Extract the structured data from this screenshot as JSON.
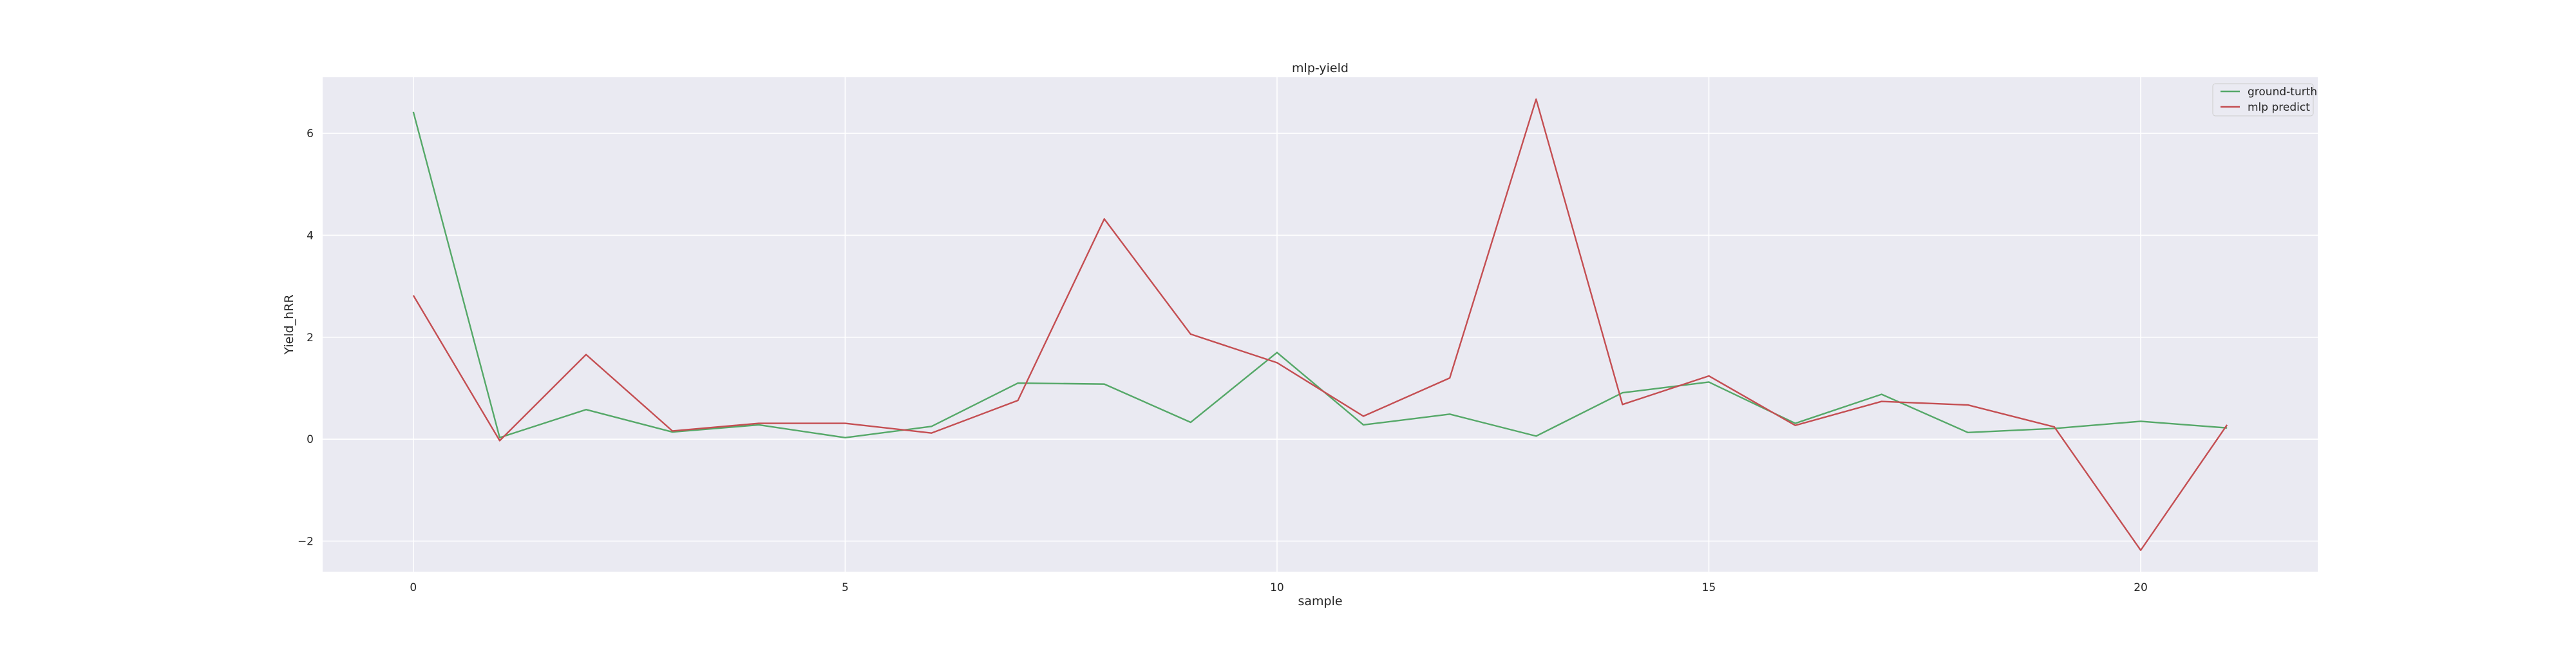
{
  "chart_data": {
    "type": "line",
    "title": "mlp-yield",
    "xlabel": "sample",
    "ylabel": "Yield_hRR",
    "xlim": [
      -1.05,
      22.05
    ],
    "ylim": [
      -2.6,
      7.1
    ],
    "xticks": [
      0,
      5,
      10,
      15,
      20
    ],
    "yticks": [
      -2,
      0,
      2,
      4,
      6
    ],
    "ytick_labels": [
      "−2",
      "0",
      "2",
      "4",
      "6"
    ],
    "grid": true,
    "legend_position": "top-right",
    "x": [
      0,
      1,
      2,
      3,
      4,
      5,
      6,
      7,
      8,
      9,
      10,
      11,
      12,
      13,
      14,
      15,
      16,
      17,
      18,
      19,
      20,
      21
    ],
    "series": [
      {
        "name": "ground-turth",
        "color": "#55a868",
        "values": [
          6.42,
          0.03,
          0.58,
          0.14,
          0.28,
          0.03,
          0.25,
          1.1,
          1.08,
          0.33,
          1.7,
          0.28,
          0.49,
          0.06,
          0.91,
          1.12,
          0.31,
          0.88,
          0.13,
          0.21,
          0.35,
          0.22
        ]
      },
      {
        "name": "mlp predict",
        "color": "#c44e52",
        "values": [
          2.82,
          -0.03,
          1.66,
          0.16,
          0.31,
          0.31,
          0.12,
          0.76,
          4.32,
          2.06,
          1.5,
          0.45,
          1.2,
          6.67,
          0.68,
          1.24,
          0.27,
          0.74,
          0.67,
          0.24,
          -2.18,
          0.28
        ]
      }
    ]
  }
}
